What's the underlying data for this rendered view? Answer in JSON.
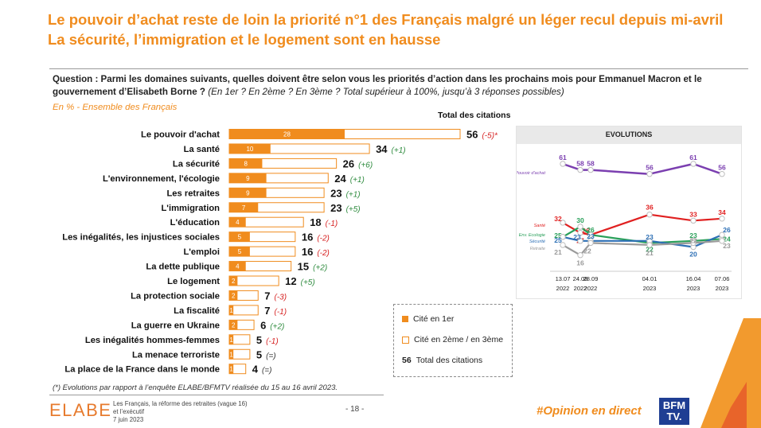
{
  "title": {
    "line1": "Le pouvoir d’achat reste de loin la priorité n°1 des Français malgré un léger recul depuis mi-avril",
    "line2": "La sécurité, l’immigration et le logement sont en hausse"
  },
  "question": {
    "label": "Question : Parmi les domaines suivants, quelles doivent être selon vous les priorités d’action dans les prochains mois pour Emmanuel Macron et le gouvernement d’Elisabeth Borne ?",
    "note": "(En 1er ? En 2ème ? En 3ème ? Total supérieur à 100%, jusqu’à 3 réponses possibles)"
  },
  "subtitle": "En % - Ensemble des Français",
  "total_label": "Total des citations",
  "chart_data": [
    {
      "type": "bar",
      "title": "Total des citations",
      "categories": [
        "Le pouvoir d'achat",
        "La santé",
        "La sécurité",
        "L'environnement, l'écologie",
        "Les retraites",
        "L'immigration",
        "L'éducation",
        "Les inégalités, les injustices sociales",
        "L'emploi",
        "La dette publique",
        "Le logement",
        "La protection sociale",
        "La fiscalité",
        "La guerre en Ukraine",
        "Les inégalités hommes-femmes",
        "La menace terroriste",
        "La place de la France dans le monde"
      ],
      "series": [
        {
          "name": "Cité en 1er",
          "values": [
            28,
            10,
            8,
            9,
            9,
            7,
            4,
            5,
            5,
            4,
            2,
            2,
            1,
            2,
            1,
            1,
            1
          ],
          "labels": [
            "28",
            "10",
            "8",
            "9",
            "9",
            "7",
            "4",
            "5",
            "5",
            "4",
            "2",
            "2",
            "1",
            "2",
            "1",
            "1",
            "1"
          ]
        },
        {
          "name": "Total des citations",
          "values": [
            56,
            34,
            26,
            24,
            23,
            23,
            18,
            16,
            16,
            15,
            12,
            7,
            7,
            6,
            5,
            5,
            4
          ]
        }
      ],
      "evolutions": [
        "(-5)*",
        "(+1)",
        "(+6)",
        "(+1)",
        "(+1)",
        "(+5)",
        "(-1)",
        "(-2)",
        "(-2)",
        "(+2)",
        "(+5)",
        "(-3)",
        "(-1)",
        "(+2)",
        "(-1)",
        "(=)",
        "(=)"
      ],
      "xlim": [
        0,
        56
      ]
    },
    {
      "type": "line",
      "title": "EVOLUTIONS",
      "x": [
        "13.07 2022",
        "24.08 2022",
        "28.09 2022",
        "04.01 2023",
        "16.04 2023",
        "07.06 2023"
      ],
      "x_top": [
        "13.07",
        "24.08",
        "28.09",
        "04.01",
        "16.04",
        "07.06"
      ],
      "x_bottom": [
        "2022",
        "2022",
        "2022",
        "2023",
        "2023",
        "2023"
      ],
      "ylim": [
        10,
        70
      ],
      "series": [
        {
          "name": "Pouvoir d'achat",
          "color": "#7b3fb0",
          "values": [
            61,
            58,
            58,
            56,
            61,
            56
          ],
          "labels": [
            "61",
            "58",
            "58",
            "56",
            "61",
            "56"
          ]
        },
        {
          "name": "Santé",
          "color": "#e02020",
          "values": [
            32,
            27,
            26,
            36,
            33,
            34
          ],
          "labels": [
            "32",
            "27",
            "26",
            "36",
            "33",
            "34"
          ]
        },
        {
          "name": "Env. Ecologie",
          "color": "#2aa05a",
          "values": [
            25,
            30,
            26,
            22,
            23,
            24
          ],
          "labels": [
            "25",
            "30",
            "26",
            "22",
            "23",
            "24"
          ]
        },
        {
          "name": "Sécurité",
          "color": "#2c6fb5",
          "values": [
            25,
            23,
            23,
            23,
            20,
            26
          ],
          "labels": [
            "25",
            "23",
            "23",
            "23",
            "20",
            "26"
          ]
        },
        {
          "name": "Retraite",
          "color": "#9a9a9a",
          "values": [
            21,
            16,
            22,
            21,
            22,
            23
          ],
          "labels": [
            "21",
            "16",
            "22",
            "21",
            "22",
            "23"
          ]
        }
      ]
    }
  ],
  "legend": {
    "first": "Cité en 1er",
    "second": "Cité en 2ème / en 3ème",
    "total_value": "56",
    "total": "Total des citations"
  },
  "footnote": "(*) Evolutions par rapport à l’enquête ELABE/BFMTV réalisée du 15 au 16 avril 2023.",
  "footer": {
    "logo": "ELABE",
    "line1": "Les Français, la réforme des retraites (vague 16)",
    "line2": "et l’exécutif",
    "line3": "7 juin 2023",
    "page": "- 18 -",
    "hashtag": "#Opinion en direct",
    "bfm1": "BFM",
    "bfm2": "TV."
  },
  "colors": {
    "accent": "#f08c1e",
    "positive": "#2e8b3e",
    "negative": "#d62020"
  }
}
